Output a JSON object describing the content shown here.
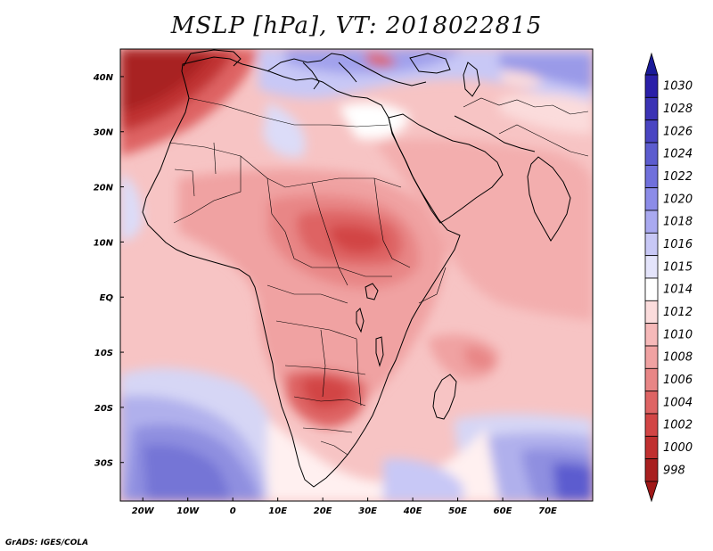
{
  "title": "MSLP [hPa], VT: 2018022815",
  "footer": "GrADS: IGES/COLA",
  "map": {
    "region": "Africa",
    "lon_range": [
      -25,
      80
    ],
    "lat_range": [
      -37,
      45
    ],
    "lon_ticks": [
      "20W",
      "10W",
      "0",
      "10E",
      "20E",
      "30E",
      "40E",
      "50E",
      "60E",
      "70E"
    ],
    "lon_tick_values": [
      -20,
      -10,
      0,
      10,
      20,
      30,
      40,
      50,
      60,
      70
    ],
    "lat_ticks": [
      "40N",
      "30N",
      "20N",
      "10N",
      "EQ",
      "10S",
      "20S",
      "30S"
    ],
    "lat_tick_values": [
      40,
      30,
      20,
      10,
      0,
      -10,
      -20,
      -30
    ]
  },
  "colorbar": {
    "labels": [
      "1030",
      "1028",
      "1026",
      "1024",
      "1022",
      "1020",
      "1018",
      "1016",
      "1015",
      "1014",
      "1012",
      "1010",
      "1008",
      "1006",
      "1004",
      "1002",
      "1000",
      "998"
    ],
    "colors": [
      "#2a1fa8",
      "#3b33b5",
      "#4a45c2",
      "#5c5ccf",
      "#7070dc",
      "#8c8ce8",
      "#a9a9f0",
      "#c8c8f6",
      "#e4e4fb",
      "#ffffff",
      "#fbdcdc",
      "#f6b9b9",
      "#f0a2a2",
      "#e88686",
      "#de6464",
      "#d24545",
      "#c03030",
      "#a82020"
    ],
    "top_arrow_color": "#1a1a99",
    "bottom_arrow_color": "#a01818"
  }
}
